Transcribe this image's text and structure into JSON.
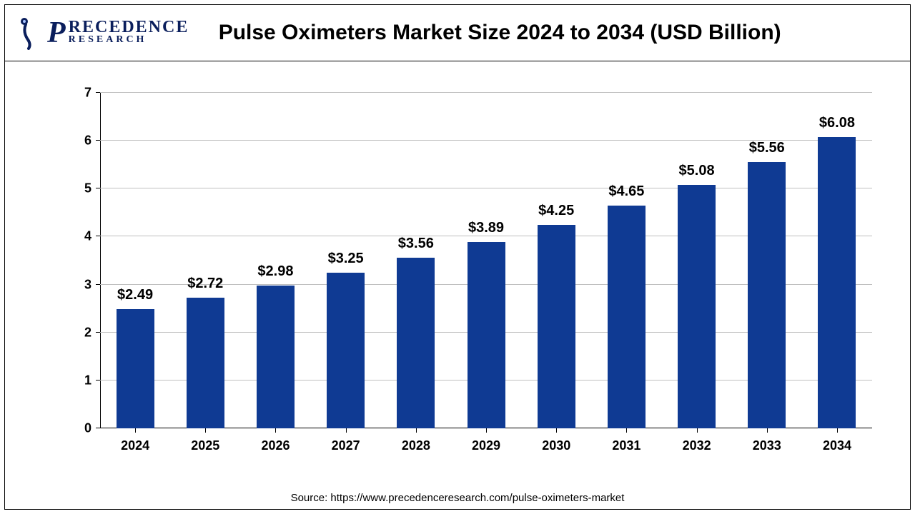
{
  "logo": {
    "top": "RECEDENCE",
    "bottom": "RESEARCH",
    "p_glyph": "P"
  },
  "title": "Pulse Oximeters Market Size 2024 to 2034 (USD Billion)",
  "chart": {
    "type": "bar",
    "categories": [
      "2024",
      "2025",
      "2026",
      "2027",
      "2028",
      "2029",
      "2030",
      "2031",
      "2032",
      "2033",
      "2034"
    ],
    "values": [
      2.49,
      2.72,
      2.98,
      3.25,
      3.56,
      3.89,
      4.25,
      4.65,
      5.08,
      5.56,
      6.08
    ],
    "value_labels": [
      "$2.49",
      "$2.72",
      "$2.98",
      "$3.25",
      "$3.56",
      "$3.89",
      "$4.25",
      "$4.65",
      "$5.08",
      "$5.56",
      "$6.08"
    ],
    "bar_color": "#0f3a93",
    "ylim": [
      0,
      7
    ],
    "ytick_step": 1,
    "yticks": [
      "0",
      "1",
      "2",
      "3",
      "4",
      "5",
      "6",
      "7"
    ],
    "grid_color": "#bfbfbf",
    "background_color": "#ffffff",
    "bar_width_pct": 54,
    "label_fontsize": 20,
    "axis_fontsize": 18,
    "title_fontsize": 30
  },
  "source": "Source: https://www.precedenceresearch.com/pulse-oximeters-market"
}
